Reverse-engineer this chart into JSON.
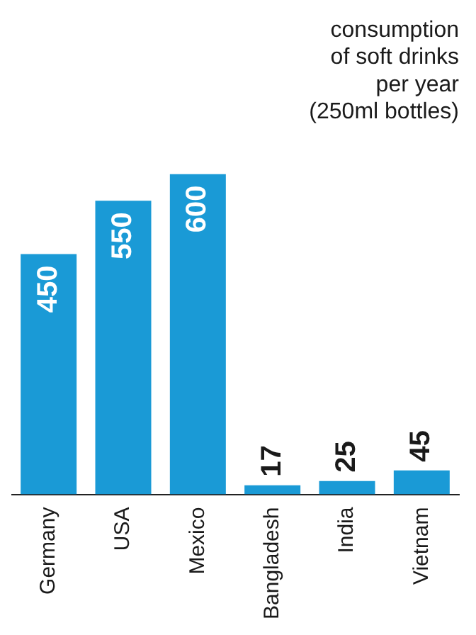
{
  "chart_data": {
    "type": "bar",
    "title": "consumption\nof soft drinks\nper year\n(250ml bottles)",
    "categories": [
      "Germany",
      "USA",
      "Mexico",
      "Bangladesh",
      "India",
      "Vietnam"
    ],
    "values": [
      450,
      550,
      600,
      17,
      25,
      45
    ],
    "color": "#1a9ad6",
    "data_labels": true,
    "grid": false,
    "legend": false
  }
}
